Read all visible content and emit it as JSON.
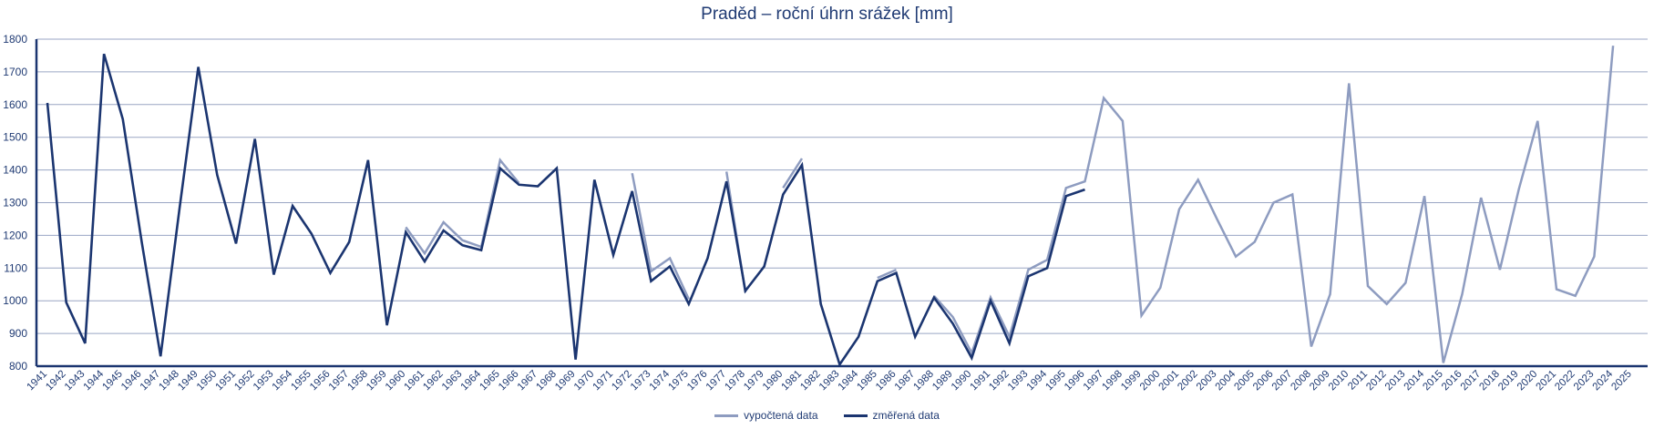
{
  "chart_data": {
    "type": "line",
    "title": "Praděd – roční úhrn srážek [mm]",
    "xlabel": "",
    "ylabel": "",
    "ylim": [
      800,
      1800
    ],
    "yticks": [
      800,
      900,
      1000,
      1100,
      1200,
      1300,
      1400,
      1500,
      1600,
      1700,
      1800
    ],
    "grid": true,
    "legend_position": "bottom",
    "x": [
      1941,
      1942,
      1943,
      1944,
      1945,
      1946,
      1947,
      1948,
      1949,
      1950,
      1951,
      1952,
      1953,
      1954,
      1955,
      1956,
      1957,
      1958,
      1959,
      1960,
      1961,
      1962,
      1963,
      1964,
      1965,
      1966,
      1967,
      1968,
      1969,
      1970,
      1971,
      1972,
      1973,
      1974,
      1975,
      1976,
      1977,
      1978,
      1979,
      1980,
      1981,
      1982,
      1983,
      1984,
      1985,
      1986,
      1987,
      1988,
      1989,
      1990,
      1991,
      1992,
      1993,
      1994,
      1995,
      1996,
      1997,
      1998,
      1999,
      2000,
      2001,
      2002,
      2003,
      2004,
      2005,
      2006,
      2007,
      2008,
      2009,
      2010,
      2011,
      2012,
      2013,
      2014,
      2015,
      2016,
      2017,
      2018,
      2019,
      2020,
      2021,
      2022,
      2023,
      2024,
      2025
    ],
    "series": [
      {
        "name": "vypočtená data",
        "color": "#8e9cc0",
        "values": [
          null,
          null,
          null,
          null,
          null,
          null,
          null,
          null,
          null,
          null,
          null,
          1510,
          null,
          null,
          1220,
          null,
          null,
          null,
          null,
          1225,
          1145,
          1240,
          1185,
          1165,
          1430,
          1360,
          null,
          null,
          null,
          1385,
          null,
          1390,
          1090,
          1130,
          1005,
          null,
          1395,
          1025,
          null,
          1345,
          1435,
          null,
          null,
          null,
          1070,
          1095,
          null,
          1015,
          950,
          840,
          1010,
          890,
          1095,
          1125,
          1345,
          1365,
          1620,
          1550,
          955,
          1040,
          1280,
          1370,
          1250,
          1135,
          1180,
          1300,
          1325,
          860,
          1020,
          1665,
          1045,
          990,
          1055,
          1320,
          810,
          1020,
          1315,
          1095,
          1340,
          1550,
          1035,
          1015,
          1135,
          1780,
          null
        ]
      },
      {
        "name": "změřená data",
        "color": "#1b3570",
        "values": [
          1605,
          995,
          870,
          1755,
          1555,
          1180,
          830,
          1280,
          1715,
          1385,
          1175,
          1495,
          1080,
          1290,
          1205,
          1085,
          1180,
          1430,
          925,
          1210,
          1120,
          1215,
          1170,
          1155,
          1405,
          1355,
          1350,
          1405,
          820,
          1370,
          1140,
          1335,
          1060,
          1105,
          990,
          1130,
          1365,
          1030,
          1105,
          1325,
          1415,
          990,
          805,
          890,
          1060,
          1085,
          890,
          1010,
          930,
          825,
          1000,
          870,
          1075,
          1100,
          1320,
          1340,
          null,
          null,
          null,
          null,
          null,
          null,
          null,
          null,
          null,
          null,
          null,
          null,
          null,
          null,
          null,
          null,
          null,
          null,
          null,
          null,
          null,
          null,
          null,
          null,
          null,
          null,
          null,
          null,
          null
        ]
      }
    ]
  }
}
